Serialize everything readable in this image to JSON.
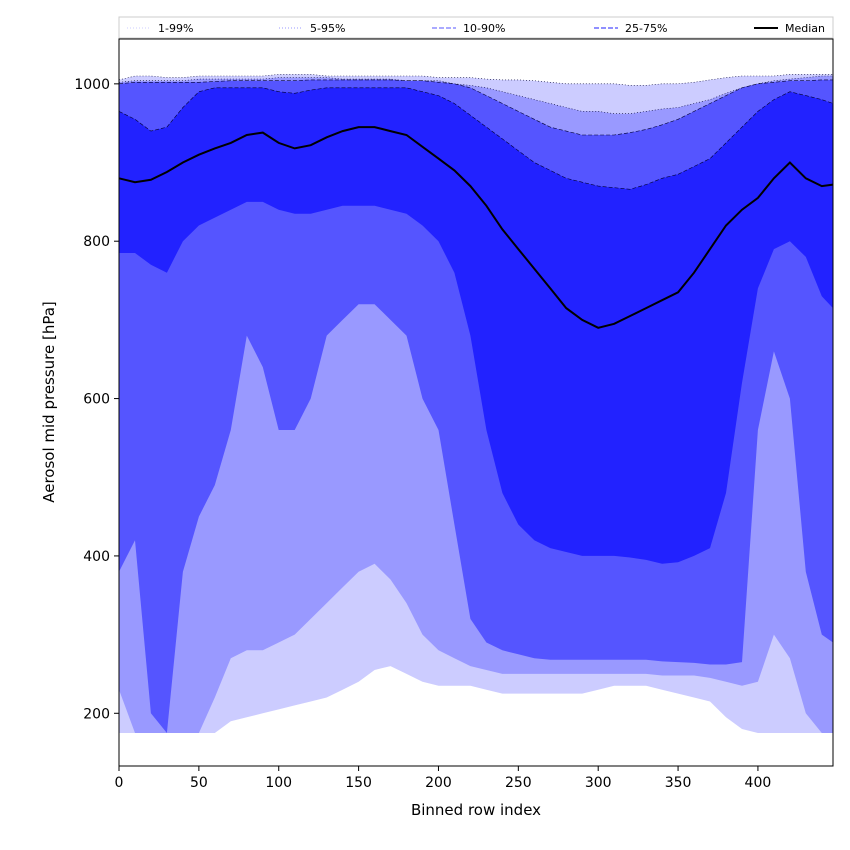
{
  "chart_data": {
    "type": "area",
    "xlabel": "Binned row index",
    "ylabel": "Aerosol mid pressure [hPa]",
    "xlim": [
      0,
      447
    ],
    "ylim": [
      133,
      1057
    ],
    "xticks": [
      0,
      50,
      100,
      150,
      200,
      250,
      300,
      350,
      400
    ],
    "yticks": [
      200,
      400,
      600,
      800,
      1000
    ],
    "legend_position": "top (spanning full width)",
    "grid": false,
    "x": [
      0,
      10,
      20,
      30,
      40,
      50,
      60,
      70,
      80,
      90,
      100,
      110,
      120,
      130,
      140,
      150,
      160,
      170,
      180,
      190,
      200,
      210,
      220,
      230,
      240,
      250,
      260,
      270,
      280,
      290,
      300,
      310,
      320,
      330,
      340,
      350,
      360,
      370,
      380,
      390,
      400,
      410,
      420,
      430,
      440,
      447
    ],
    "bands": [
      {
        "name": "1-99%",
        "color": "#ccccff",
        "linestyle": "dotted",
        "lower": [
          175,
          175,
          175,
          175,
          175,
          175,
          175,
          190,
          195,
          200,
          205,
          210,
          215,
          220,
          230,
          240,
          255,
          260,
          250,
          240,
          235,
          235,
          235,
          230,
          225,
          225,
          225,
          225,
          225,
          225,
          230,
          235,
          235,
          235,
          230,
          225,
          220,
          215,
          195,
          180,
          175,
          175,
          175,
          175,
          175,
          175
        ],
        "upper": [
          1005,
          1010,
          1010,
          1008,
          1008,
          1010,
          1010,
          1010,
          1010,
          1010,
          1012,
          1012,
          1012,
          1010,
          1010,
          1010,
          1010,
          1010,
          1010,
          1010,
          1008,
          1008,
          1008,
          1006,
          1005,
          1005,
          1004,
          1002,
          1000,
          1000,
          1000,
          1000,
          998,
          998,
          1000,
          1000,
          1002,
          1005,
          1008,
          1010,
          1010,
          1010,
          1012,
          1012,
          1012,
          1012
        ]
      },
      {
        "name": "5-95%",
        "color": "#9999ff",
        "linestyle": "dotted",
        "lower": [
          230,
          175,
          175,
          175,
          175,
          175,
          220,
          270,
          280,
          280,
          290,
          300,
          320,
          340,
          360,
          380,
          390,
          370,
          340,
          300,
          280,
          270,
          260,
          255,
          250,
          250,
          250,
          250,
          250,
          250,
          250,
          250,
          250,
          250,
          248,
          248,
          248,
          245,
          240,
          235,
          240,
          300,
          270,
          200,
          175,
          175
        ],
        "upper": [
          1002,
          1004,
          1004,
          1004,
          1004,
          1006,
          1006,
          1006,
          1006,
          1006,
          1008,
          1008,
          1008,
          1008,
          1006,
          1006,
          1006,
          1006,
          1004,
          1004,
          1004,
          1000,
          998,
          995,
          990,
          985,
          980,
          975,
          970,
          965,
          965,
          962,
          962,
          965,
          968,
          970,
          975,
          980,
          988,
          995,
          1000,
          1004,
          1006,
          1008,
          1010,
          1010
        ]
      },
      {
        "name": "10-90%",
        "color": "#5555ff",
        "linestyle": "dashed",
        "lower": [
          380,
          420,
          200,
          175,
          380,
          450,
          490,
          560,
          680,
          640,
          560,
          560,
          600,
          680,
          700,
          720,
          720,
          700,
          680,
          600,
          560,
          440,
          320,
          290,
          280,
          275,
          270,
          268,
          268,
          268,
          268,
          268,
          268,
          268,
          266,
          265,
          264,
          262,
          262,
          265,
          560,
          660,
          600,
          380,
          300,
          290
        ],
        "upper": [
          1000,
          1002,
          1002,
          1002,
          1002,
          1002,
          1003,
          1004,
          1004,
          1004,
          1004,
          1004,
          1005,
          1005,
          1005,
          1005,
          1005,
          1005,
          1004,
          1004,
          1002,
          1000,
          995,
          985,
          975,
          965,
          955,
          945,
          940,
          935,
          935,
          935,
          938,
          942,
          948,
          955,
          965,
          975,
          985,
          995,
          1000,
          1002,
          1004,
          1004,
          1005,
          1005
        ]
      },
      {
        "name": "25-75%",
        "color": "#2222ff",
        "linestyle": "dashed",
        "lower": [
          785,
          785,
          770,
          760,
          800,
          820,
          830,
          840,
          850,
          850,
          840,
          835,
          835,
          840,
          845,
          845,
          845,
          840,
          835,
          820,
          800,
          760,
          680,
          560,
          480,
          440,
          420,
          410,
          405,
          400,
          400,
          400,
          398,
          395,
          390,
          392,
          400,
          410,
          480,
          620,
          740,
          790,
          800,
          780,
          730,
          715
        ],
        "upper": [
          965,
          955,
          940,
          945,
          970,
          990,
          995,
          995,
          995,
          995,
          990,
          988,
          992,
          995,
          995,
          995,
          995,
          995,
          995,
          990,
          985,
          975,
          960,
          945,
          930,
          915,
          900,
          890,
          880,
          875,
          870,
          868,
          866,
          872,
          880,
          885,
          895,
          905,
          925,
          945,
          965,
          980,
          990,
          985,
          980,
          975
        ]
      }
    ],
    "series": [
      {
        "name": "Median",
        "color": "#000000",
        "values": [
          880,
          875,
          878,
          888,
          900,
          910,
          918,
          925,
          935,
          938,
          925,
          918,
          922,
          932,
          940,
          945,
          945,
          940,
          935,
          920,
          905,
          890,
          870,
          845,
          815,
          790,
          765,
          740,
          715,
          700,
          690,
          695,
          705,
          715,
          725,
          735,
          760,
          790,
          820,
          840,
          855,
          880,
          900,
          880,
          870,
          872
        ]
      }
    ]
  }
}
